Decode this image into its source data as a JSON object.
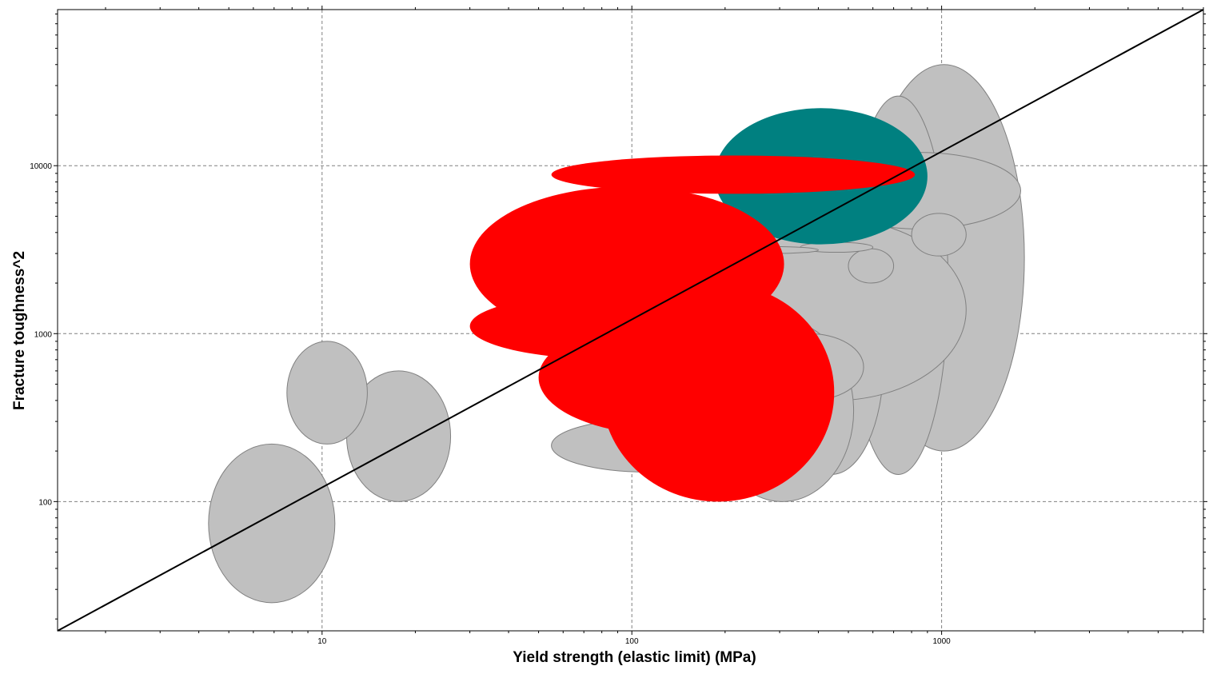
{
  "chart_data": {
    "type": "scatter",
    "subtype": "material-property-bubbles",
    "title": "",
    "xlabel": "Yield strength (elastic limit) (MPa)",
    "ylabel": "Fracture toughness^2",
    "xscale": "log",
    "yscale": "log",
    "xlim": [
      1.4,
      7000
    ],
    "ylim": [
      17,
      85000
    ],
    "grid": true,
    "x_ticks": [
      10,
      100,
      1000
    ],
    "x_tick_labels": [
      "10",
      "100",
      "1000"
    ],
    "y_ticks": [
      100,
      1000,
      10000
    ],
    "y_tick_labels": [
      "100",
      "1000",
      "10000"
    ],
    "colors": {
      "grey": "#c0c0c0",
      "red": "#ff0000",
      "teal": "#008080",
      "outline": "#808080",
      "line": "#000000"
    },
    "line": {
      "x": [
        1.4,
        7000
      ],
      "y": [
        17,
        85000
      ]
    },
    "ellipses": [
      {
        "color": "grey",
        "x": [
          4.3,
          11.0
        ],
        "y": [
          25,
          220
        ]
      },
      {
        "color": "grey",
        "x": [
          12.0,
          26.0
        ],
        "y": [
          100,
          600
        ]
      },
      {
        "color": "grey",
        "x": [
          7.7,
          14.0
        ],
        "y": [
          220,
          900
        ]
      },
      {
        "color": "grey",
        "x": [
          560,
          1850
        ],
        "y": [
          200,
          40000
        ]
      },
      {
        "color": "grey",
        "x": [
          500,
          1050
        ],
        "y": [
          145,
          26000
        ]
      },
      {
        "color": "grey",
        "x": [
          400,
          1800
        ],
        "y": [
          4200,
          12000
        ]
      },
      {
        "color": "grey",
        "x": [
          300,
          650
        ],
        "y": [
          145,
          3200
        ]
      },
      {
        "color": "grey",
        "x": [
          170,
          1200
        ],
        "y": [
          400,
          4800
        ]
      },
      {
        "color": "grey",
        "x": [
          800,
          1200
        ],
        "y": [
          2900,
          5200
        ]
      },
      {
        "color": "grey",
        "x": [
          180,
          520
        ],
        "y": [
          100,
          1200
        ]
      },
      {
        "color": "grey",
        "x": [
          250,
          560
        ],
        "y": [
          400,
          1000
        ]
      },
      {
        "color": "grey",
        "x": [
          55,
          230
        ],
        "y": [
          150,
          310
        ]
      },
      {
        "color": "grey",
        "x": [
          500,
          700
        ],
        "y": [
          2000,
          3200
        ]
      },
      {
        "color": "grey",
        "x": [
          350,
          600
        ],
        "y": [
          3050,
          3500
        ]
      },
      {
        "color": "grey",
        "x": [
          200,
          400
        ],
        "y": [
          3000,
          3300
        ]
      },
      {
        "color": "teal",
        "x": [
          185,
          900
        ],
        "y": [
          3400,
          22000
        ]
      },
      {
        "color": "red",
        "x": [
          55,
          820
        ],
        "y": [
          6800,
          11500
        ]
      },
      {
        "color": "red",
        "x": [
          30,
          310
        ],
        "y": [
          900,
          7500
        ]
      },
      {
        "color": "red",
        "x": [
          80,
          450
        ],
        "y": [
          100,
          2000
        ]
      },
      {
        "color": "red",
        "x": [
          30,
          260
        ],
        "y": [
          700,
          1750
        ]
      },
      {
        "color": "red",
        "x": [
          50,
          330
        ],
        "y": [
          250,
          1200
        ]
      }
    ]
  }
}
